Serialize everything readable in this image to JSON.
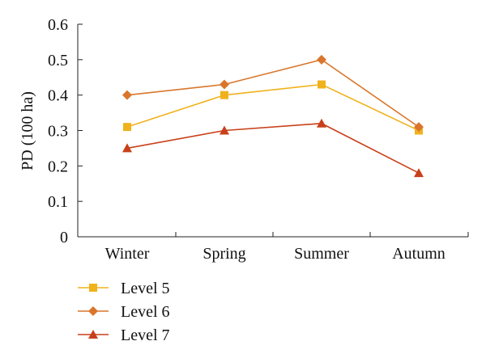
{
  "chart_data": {
    "type": "line",
    "title": "",
    "xlabel": "",
    "ylabel": "PD (100 ha)",
    "categories": [
      "Winter",
      "Spring",
      "Summer",
      "Autumn"
    ],
    "ylim": [
      0,
      0.6
    ],
    "yticks": [
      "0",
      "0.1",
      "0.2",
      "0.3",
      "0.4",
      "0.5",
      "0.6"
    ],
    "grid": false,
    "legend_position": "bottom-left",
    "series": [
      {
        "name": "Level 5",
        "values": [
          0.31,
          0.4,
          0.43,
          0.3
        ],
        "color": "#F0B21C",
        "marker": "square"
      },
      {
        "name": "Level 6",
        "values": [
          0.4,
          0.43,
          0.5,
          0.31
        ],
        "color": "#D9762B",
        "marker": "diamond"
      },
      {
        "name": "Level 7",
        "values": [
          0.25,
          0.3,
          0.32,
          0.18
        ],
        "color": "#C8401A",
        "marker": "triangle"
      }
    ]
  }
}
